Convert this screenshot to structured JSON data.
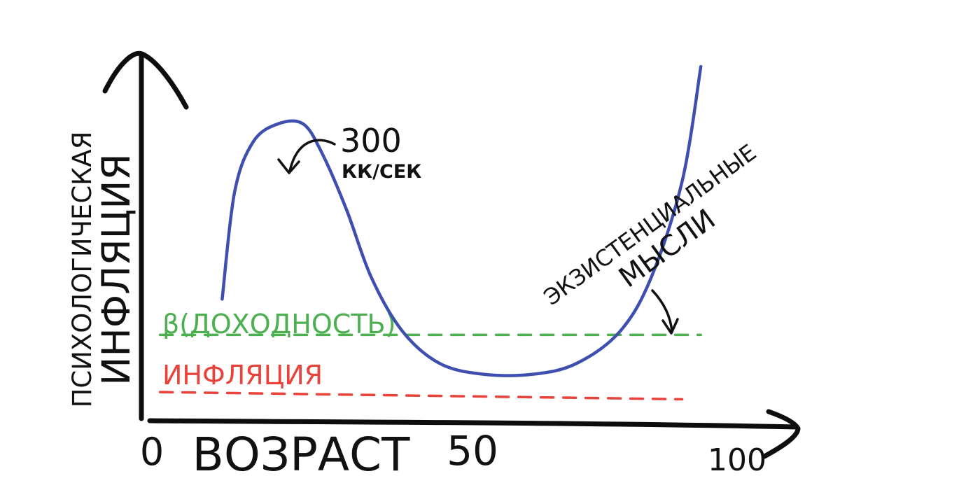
{
  "chart_data": {
    "type": "line",
    "title": "",
    "xlabel": "ВОЗРАСТ",
    "ylabel_line1": "ПСИХОЛОГИЧЕСКАЯ",
    "ylabel_line2": "ИНФЛЯЦИЯ",
    "x_ticks": [
      {
        "value": 0,
        "label": "0"
      },
      {
        "value": 50,
        "label": "50"
      },
      {
        "value": 100,
        "label": "100"
      }
    ],
    "xlim": [
      0,
      110
    ],
    "ylim": [
      0,
      10
    ],
    "grid": false,
    "series": [
      {
        "color": "#3f4fb0",
        "points": [
          [
            13,
            3.4
          ],
          [
            15,
            6.4
          ],
          [
            18,
            7.8
          ],
          [
            22,
            8.3
          ],
          [
            26,
            8.3
          ],
          [
            29,
            7.5
          ],
          [
            33,
            5.9
          ],
          [
            37,
            4.0
          ],
          [
            42,
            2.5
          ],
          [
            48,
            1.6
          ],
          [
            55,
            1.3
          ],
          [
            63,
            1.3
          ],
          [
            70,
            1.6
          ],
          [
            77,
            2.5
          ],
          [
            82,
            4.0
          ],
          [
            87,
            6.7
          ],
          [
            90,
            9.9
          ]
        ]
      }
    ],
    "reference_lines": [
      {
        "label": "β(ДОХОДНОСТЬ)",
        "color": "#4caf50",
        "y": 2.4,
        "x_start": 3,
        "x_end": 90
      },
      {
        "label": "ИНФЛЯЦИЯ",
        "color": "#e8423a",
        "y_start": 0.8,
        "y_end": 0.6,
        "x_start": 3,
        "x_end": 87
      }
    ],
    "annotations": [
      {
        "text_line1": "300",
        "text_line2": "КК/СЕК",
        "target_x": 20,
        "target_y": 8.3
      },
      {
        "text_line1": "ЭКЗИСТЕНЦИАЛЬНЫЕ",
        "text_line2": "МЫСЛИ",
        "target_x": 77,
        "target_y": 2.5
      }
    ]
  }
}
